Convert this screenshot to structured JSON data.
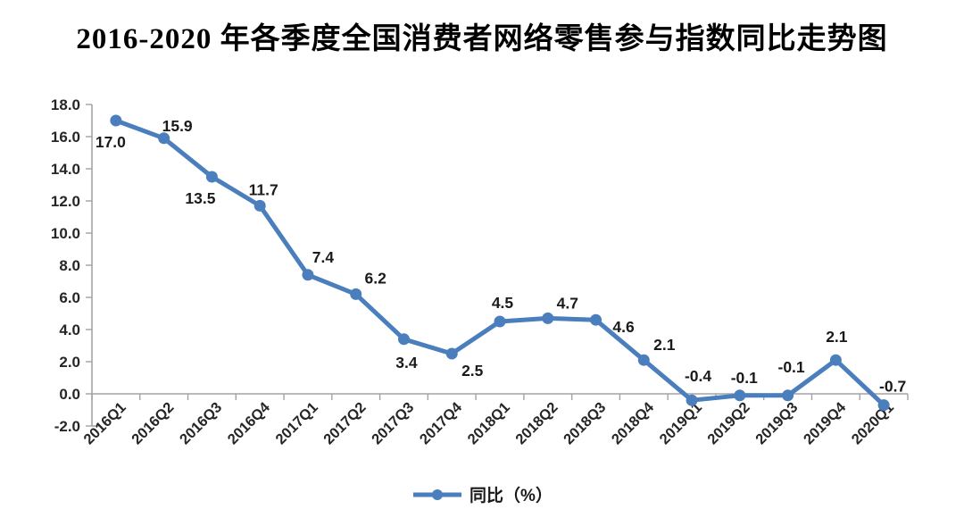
{
  "title": "2016-2020 年各季度全国消费者网络零售参与指数同比走势图",
  "legend": {
    "label": "同比（%）"
  },
  "colors": {
    "line": "#4A7EBC",
    "axis": "#A3A3A3",
    "tick_text": "#262626",
    "data_label": "#1A1A1A"
  },
  "chart_data": {
    "type": "line",
    "title": "2016-2020 年各季度全国消费者网络零售参与指数同比走势图",
    "categories": [
      "2016Q1",
      "2016Q2",
      "2016Q3",
      "2016Q4",
      "2017Q1",
      "2017Q2",
      "2017Q3",
      "2017Q4",
      "2018Q1",
      "2018Q2",
      "2018Q3",
      "2018Q4",
      "2019Q1",
      "2019Q2",
      "2019Q3",
      "2019Q4",
      "2020Q1"
    ],
    "series": [
      {
        "name": "同比（%）",
        "values": [
          17.0,
          15.9,
          13.5,
          11.7,
          7.4,
          6.2,
          3.4,
          2.5,
          4.5,
          4.7,
          4.6,
          2.1,
          -0.4,
          -0.1,
          -0.1,
          2.1,
          -0.7
        ]
      }
    ],
    "xlabel": "",
    "ylabel": "",
    "ylim": [
      -2.0,
      18.0
    ],
    "ytick_step": 2.0,
    "grid": false,
    "legend_position": "bottom",
    "data_labels": true
  }
}
